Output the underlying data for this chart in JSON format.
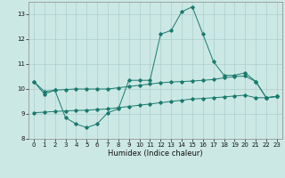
{
  "xlabel": "Humidex (Indice chaleur)",
  "xlim": [
    -0.5,
    23.5
  ],
  "ylim": [
    8,
    13.5
  ],
  "yticks": [
    8,
    9,
    10,
    11,
    12,
    13
  ],
  "xticks": [
    0,
    1,
    2,
    3,
    4,
    5,
    6,
    7,
    8,
    9,
    10,
    11,
    12,
    13,
    14,
    15,
    16,
    17,
    18,
    19,
    20,
    21,
    22,
    23
  ],
  "bg_color": "#cce8e4",
  "grid_color": "#aacfcb",
  "line_color": "#1a7a6e",
  "line1_x": [
    0,
    1,
    2,
    3,
    4,
    5,
    6,
    7,
    8,
    9,
    10,
    11,
    12,
    13,
    14,
    15,
    16,
    17,
    18,
    19,
    20,
    21,
    22,
    23
  ],
  "line1_y": [
    10.3,
    9.8,
    9.95,
    8.85,
    8.6,
    8.45,
    8.6,
    9.05,
    9.2,
    10.35,
    10.35,
    10.35,
    12.2,
    12.35,
    13.1,
    13.3,
    12.2,
    11.1,
    10.55,
    10.55,
    10.65,
    10.3,
    9.65,
    9.7
  ],
  "line2_x": [
    0,
    1,
    2,
    3,
    4,
    5,
    6,
    7,
    8,
    9,
    10,
    11,
    12,
    13,
    14,
    15,
    16,
    17,
    18,
    19,
    20,
    21,
    22,
    23
  ],
  "line2_y": [
    10.3,
    9.9,
    9.95,
    9.98,
    10.0,
    10.0,
    10.0,
    10.0,
    10.05,
    10.1,
    10.15,
    10.2,
    10.25,
    10.28,
    10.3,
    10.32,
    10.35,
    10.38,
    10.45,
    10.5,
    10.52,
    10.3,
    9.65,
    9.7
  ],
  "line3_x": [
    0,
    1,
    2,
    3,
    4,
    5,
    6,
    7,
    8,
    9,
    10,
    11,
    12,
    13,
    14,
    15,
    16,
    17,
    18,
    19,
    20,
    21,
    22,
    23
  ],
  "line3_y": [
    9.05,
    9.07,
    9.1,
    9.12,
    9.14,
    9.15,
    9.18,
    9.2,
    9.25,
    9.3,
    9.35,
    9.4,
    9.45,
    9.5,
    9.55,
    9.6,
    9.62,
    9.65,
    9.68,
    9.72,
    9.75,
    9.65,
    9.65,
    9.7
  ],
  "xlabel_fontsize": 6.0,
  "tick_fontsize": 5.0,
  "lw": 0.7,
  "ms": 1.8
}
